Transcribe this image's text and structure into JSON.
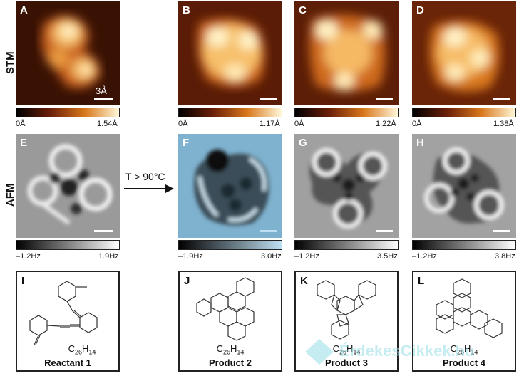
{
  "row_labels": {
    "stm": "STM",
    "afm": "AFM"
  },
  "stm_panels": [
    {
      "letter": "A",
      "cbar_min": "0Å",
      "cbar_max": "1.54Å",
      "scale_text": "3Å"
    },
    {
      "letter": "B",
      "cbar_min": "0Å",
      "cbar_max": "1.17Å"
    },
    {
      "letter": "C",
      "cbar_min": "0Å",
      "cbar_max": "1.22Å"
    },
    {
      "letter": "D",
      "cbar_min": "0Å",
      "cbar_max": "1.38Å"
    }
  ],
  "afm_panels": [
    {
      "letter": "E",
      "cbar_min": "–1.2Hz",
      "cbar_max": "1.9Hz"
    },
    {
      "letter": "F",
      "cbar_min": "–1.9Hz",
      "cbar_max": "3.0Hz"
    },
    {
      "letter": "G",
      "cbar_min": "–1.2Hz",
      "cbar_max": "3.5Hz"
    },
    {
      "letter": "H",
      "cbar_min": "–1.2Hz",
      "cbar_max": "3.8Hz"
    }
  ],
  "arrow": {
    "label": "T > 90°C"
  },
  "structures": [
    {
      "letter": "I",
      "formula": "C26H14",
      "name": "Reactant 1"
    },
    {
      "letter": "J",
      "formula": "C26H14",
      "name": "Product 2"
    },
    {
      "letter": "K",
      "formula": "C26H14",
      "name": "Product 3"
    },
    {
      "letter": "L",
      "formula": "C26H14",
      "name": "Product 4"
    }
  ],
  "watermark": {
    "text": "ÉrdekesCikkek.hu",
    "color": "#96dce6"
  },
  "colors": {
    "stm_low": "#1a0a00",
    "stm_mid": "#b8541a",
    "stm_high": "#fff3c8",
    "afm_tint": "#7fb6d6"
  }
}
